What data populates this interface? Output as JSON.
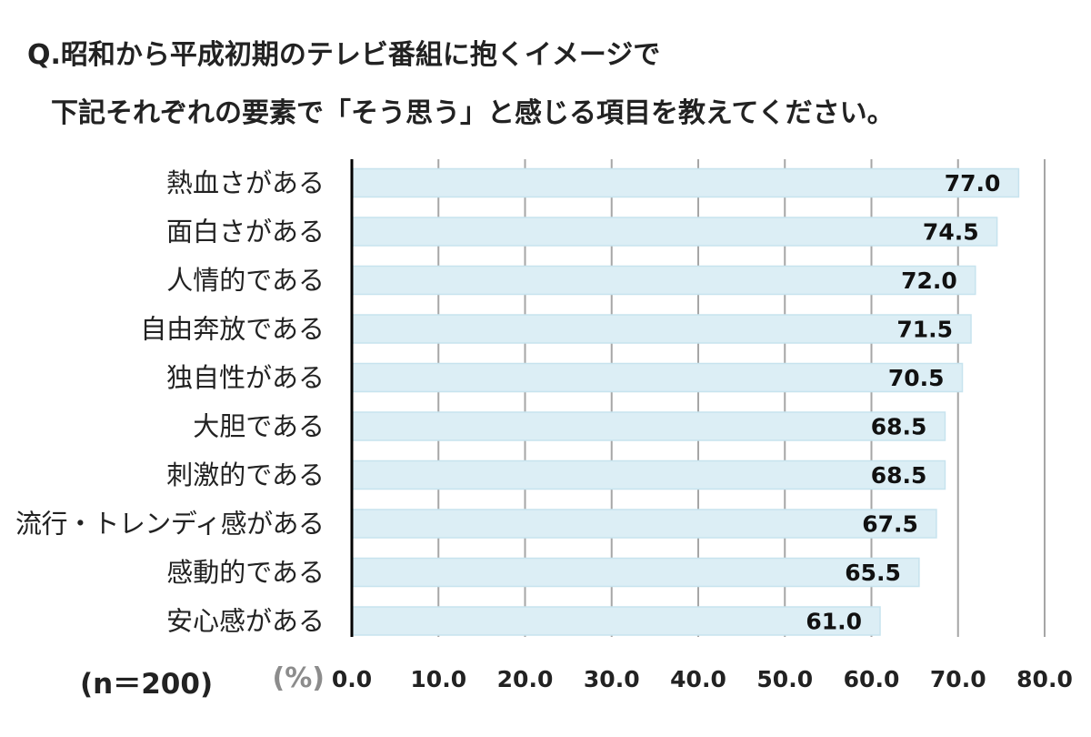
{
  "chart_data": {
    "type": "bar",
    "orientation": "horizontal",
    "title_line1": "Q.昭和から平成初期のテレビ番組に抱くイメージで",
    "title_line2": "下記それぞれの要素で「そう思う」と感じる項目を教えてください。",
    "sample_size_label": "(n＝200)",
    "unit_label": "(%)",
    "categories": [
      "熱血さがある",
      "面白さがある",
      "人情的である",
      "自由奔放である",
      "独自性がある",
      "大胆である",
      "刺激的である",
      "流行・トレンディ感がある",
      "感動的である",
      "安心感がある"
    ],
    "values": [
      77.0,
      74.5,
      72.0,
      71.5,
      70.5,
      68.5,
      68.5,
      67.5,
      65.5,
      61.0
    ],
    "value_labels": [
      "77.0",
      "74.5",
      "72.0",
      "71.5",
      "70.5",
      "68.5",
      "68.5",
      "67.5",
      "65.5",
      "61.0"
    ],
    "xlim": [
      0,
      80
    ],
    "ticks": [
      "0.0",
      "10.0",
      "20.0",
      "30.0",
      "40.0",
      "50.0",
      "60.0",
      "70.0",
      "80.0"
    ],
    "grid": true,
    "colors": {
      "bar_fill": "#dceef5",
      "bar_stroke": "#c7e3ee",
      "axis": "#000000",
      "grid": "#a6a6a6",
      "text": "#222222",
      "unit": "#8c8c8c"
    }
  }
}
